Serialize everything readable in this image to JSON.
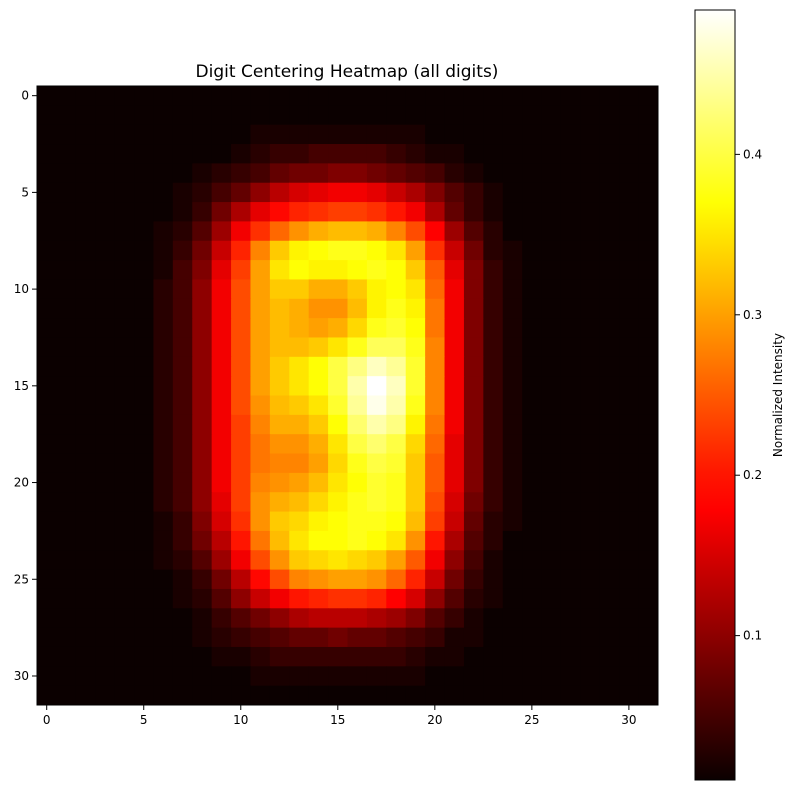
{
  "chart_data": {
    "type": "heatmap",
    "title": "Digit Centering Heatmap (all digits)",
    "xlabel": "",
    "ylabel": "",
    "colormap": "hot",
    "grid": false,
    "rows": 32,
    "cols": 32,
    "xlim": [
      -0.5,
      31.5
    ],
    "ylim": [
      31.5,
      -0.5
    ],
    "x_ticks": [
      0,
      5,
      10,
      15,
      20,
      25,
      30
    ],
    "y_ticks": [
      0,
      5,
      10,
      15,
      20,
      25,
      30
    ],
    "x_tick_labels": [
      "0",
      "5",
      "10",
      "15",
      "20",
      "25",
      "30"
    ],
    "y_tick_labels": [
      "0",
      "5",
      "10",
      "15",
      "20",
      "25",
      "30"
    ],
    "colorbar": {
      "label": "Normalized Intensity",
      "range": [
        0.01,
        0.49
      ],
      "ticks": [
        0.1,
        0.2,
        0.3,
        0.4
      ],
      "tick_labels": [
        "0.1",
        "0.2",
        "0.3",
        "0.4"
      ]
    },
    "values": [
      [
        0.01,
        0.01,
        0.01,
        0.01,
        0.01,
        0.01,
        0.01,
        0.01,
        0.01,
        0.01,
        0.01,
        0.01,
        0.01,
        0.01,
        0.01,
        0.01,
        0.01,
        0.01,
        0.01,
        0.01,
        0.01,
        0.01,
        0.01,
        0.01,
        0.01,
        0.01,
        0.01,
        0.01,
        0.01,
        0.01,
        0.01,
        0.01
      ],
      [
        0.01,
        0.01,
        0.01,
        0.01,
        0.01,
        0.01,
        0.01,
        0.01,
        0.01,
        0.01,
        0.01,
        0.01,
        0.01,
        0.01,
        0.01,
        0.01,
        0.01,
        0.01,
        0.01,
        0.01,
        0.01,
        0.01,
        0.01,
        0.01,
        0.01,
        0.01,
        0.01,
        0.01,
        0.01,
        0.01,
        0.01,
        0.01
      ],
      [
        0.01,
        0.01,
        0.01,
        0.01,
        0.01,
        0.01,
        0.01,
        0.01,
        0.01,
        0.01,
        0.01,
        0.02,
        0.02,
        0.02,
        0.02,
        0.02,
        0.02,
        0.02,
        0.02,
        0.02,
        0.01,
        0.01,
        0.01,
        0.01,
        0.01,
        0.01,
        0.01,
        0.01,
        0.01,
        0.01,
        0.01,
        0.01
      ],
      [
        0.01,
        0.01,
        0.01,
        0.01,
        0.01,
        0.01,
        0.01,
        0.01,
        0.01,
        0.01,
        0.02,
        0.03,
        0.04,
        0.04,
        0.05,
        0.05,
        0.05,
        0.05,
        0.04,
        0.03,
        0.02,
        0.02,
        0.01,
        0.01,
        0.01,
        0.01,
        0.01,
        0.01,
        0.01,
        0.01,
        0.01,
        0.01
      ],
      [
        0.01,
        0.01,
        0.01,
        0.01,
        0.01,
        0.01,
        0.01,
        0.01,
        0.02,
        0.03,
        0.04,
        0.05,
        0.07,
        0.08,
        0.08,
        0.09,
        0.09,
        0.08,
        0.07,
        0.06,
        0.05,
        0.03,
        0.02,
        0.01,
        0.01,
        0.01,
        0.01,
        0.01,
        0.01,
        0.01,
        0.01,
        0.01
      ],
      [
        0.01,
        0.01,
        0.01,
        0.01,
        0.01,
        0.01,
        0.01,
        0.02,
        0.03,
        0.05,
        0.07,
        0.1,
        0.13,
        0.15,
        0.16,
        0.17,
        0.17,
        0.16,
        0.14,
        0.12,
        0.09,
        0.06,
        0.04,
        0.02,
        0.01,
        0.01,
        0.01,
        0.01,
        0.01,
        0.01,
        0.01,
        0.01
      ],
      [
        0.01,
        0.01,
        0.01,
        0.01,
        0.01,
        0.01,
        0.01,
        0.02,
        0.04,
        0.08,
        0.12,
        0.16,
        0.19,
        0.21,
        0.22,
        0.23,
        0.23,
        0.22,
        0.2,
        0.17,
        0.12,
        0.07,
        0.04,
        0.02,
        0.01,
        0.01,
        0.01,
        0.01,
        0.01,
        0.01,
        0.01,
        0.01
      ],
      [
        0.01,
        0.01,
        0.01,
        0.01,
        0.01,
        0.01,
        0.02,
        0.03,
        0.06,
        0.11,
        0.17,
        0.22,
        0.26,
        0.29,
        0.31,
        0.32,
        0.32,
        0.31,
        0.28,
        0.24,
        0.18,
        0.11,
        0.06,
        0.03,
        0.01,
        0.01,
        0.01,
        0.01,
        0.01,
        0.01,
        0.01,
        0.01
      ],
      [
        0.01,
        0.01,
        0.01,
        0.01,
        0.01,
        0.01,
        0.02,
        0.04,
        0.08,
        0.14,
        0.21,
        0.28,
        0.33,
        0.36,
        0.37,
        0.38,
        0.38,
        0.37,
        0.35,
        0.3,
        0.22,
        0.14,
        0.08,
        0.03,
        0.02,
        0.01,
        0.01,
        0.01,
        0.01,
        0.01,
        0.01,
        0.01
      ],
      [
        0.01,
        0.01,
        0.01,
        0.01,
        0.01,
        0.01,
        0.02,
        0.05,
        0.09,
        0.16,
        0.23,
        0.3,
        0.35,
        0.37,
        0.36,
        0.36,
        0.37,
        0.38,
        0.37,
        0.33,
        0.25,
        0.16,
        0.09,
        0.04,
        0.02,
        0.01,
        0.01,
        0.01,
        0.01,
        0.01,
        0.01,
        0.01
      ],
      [
        0.01,
        0.01,
        0.01,
        0.01,
        0.01,
        0.01,
        0.03,
        0.05,
        0.1,
        0.17,
        0.24,
        0.3,
        0.33,
        0.33,
        0.31,
        0.31,
        0.33,
        0.36,
        0.37,
        0.35,
        0.26,
        0.17,
        0.09,
        0.04,
        0.02,
        0.01,
        0.01,
        0.01,
        0.01,
        0.01,
        0.01,
        0.01
      ],
      [
        0.01,
        0.01,
        0.01,
        0.01,
        0.01,
        0.01,
        0.03,
        0.05,
        0.1,
        0.17,
        0.24,
        0.3,
        0.32,
        0.31,
        0.29,
        0.29,
        0.32,
        0.36,
        0.38,
        0.36,
        0.27,
        0.17,
        0.09,
        0.04,
        0.02,
        0.01,
        0.01,
        0.01,
        0.01,
        0.01,
        0.01,
        0.01
      ],
      [
        0.01,
        0.01,
        0.01,
        0.01,
        0.01,
        0.01,
        0.03,
        0.05,
        0.1,
        0.17,
        0.24,
        0.3,
        0.32,
        0.31,
        0.3,
        0.31,
        0.34,
        0.38,
        0.39,
        0.37,
        0.27,
        0.17,
        0.09,
        0.04,
        0.02,
        0.01,
        0.01,
        0.01,
        0.01,
        0.01,
        0.01,
        0.01
      ],
      [
        0.01,
        0.01,
        0.01,
        0.01,
        0.01,
        0.01,
        0.03,
        0.05,
        0.1,
        0.17,
        0.24,
        0.3,
        0.32,
        0.32,
        0.33,
        0.35,
        0.38,
        0.41,
        0.41,
        0.38,
        0.28,
        0.17,
        0.09,
        0.04,
        0.02,
        0.01,
        0.01,
        0.01,
        0.01,
        0.01,
        0.01,
        0.01
      ],
      [
        0.01,
        0.01,
        0.01,
        0.01,
        0.01,
        0.01,
        0.03,
        0.05,
        0.1,
        0.17,
        0.24,
        0.3,
        0.33,
        0.35,
        0.37,
        0.4,
        0.43,
        0.46,
        0.44,
        0.39,
        0.28,
        0.17,
        0.09,
        0.04,
        0.02,
        0.01,
        0.01,
        0.01,
        0.01,
        0.01,
        0.01,
        0.01
      ],
      [
        0.01,
        0.01,
        0.01,
        0.01,
        0.01,
        0.01,
        0.03,
        0.05,
        0.1,
        0.17,
        0.24,
        0.3,
        0.33,
        0.35,
        0.37,
        0.4,
        0.45,
        0.49,
        0.46,
        0.39,
        0.28,
        0.17,
        0.09,
        0.04,
        0.02,
        0.01,
        0.01,
        0.01,
        0.01,
        0.01,
        0.01,
        0.01
      ],
      [
        0.01,
        0.01,
        0.01,
        0.01,
        0.01,
        0.01,
        0.03,
        0.05,
        0.1,
        0.17,
        0.24,
        0.29,
        0.32,
        0.33,
        0.35,
        0.39,
        0.44,
        0.48,
        0.45,
        0.38,
        0.28,
        0.17,
        0.09,
        0.04,
        0.02,
        0.01,
        0.01,
        0.01,
        0.01,
        0.01,
        0.01,
        0.01
      ],
      [
        0.01,
        0.01,
        0.01,
        0.01,
        0.01,
        0.01,
        0.03,
        0.05,
        0.1,
        0.17,
        0.23,
        0.28,
        0.31,
        0.31,
        0.33,
        0.37,
        0.42,
        0.45,
        0.43,
        0.36,
        0.27,
        0.17,
        0.09,
        0.04,
        0.02,
        0.01,
        0.01,
        0.01,
        0.01,
        0.01,
        0.01,
        0.01
      ],
      [
        0.01,
        0.01,
        0.01,
        0.01,
        0.01,
        0.01,
        0.03,
        0.05,
        0.1,
        0.17,
        0.23,
        0.27,
        0.29,
        0.29,
        0.31,
        0.35,
        0.4,
        0.42,
        0.4,
        0.34,
        0.26,
        0.16,
        0.09,
        0.04,
        0.02,
        0.01,
        0.01,
        0.01,
        0.01,
        0.01,
        0.01,
        0.01
      ],
      [
        0.01,
        0.01,
        0.01,
        0.01,
        0.01,
        0.01,
        0.03,
        0.05,
        0.1,
        0.17,
        0.23,
        0.27,
        0.28,
        0.28,
        0.3,
        0.34,
        0.38,
        0.4,
        0.39,
        0.33,
        0.25,
        0.16,
        0.09,
        0.04,
        0.02,
        0.01,
        0.01,
        0.01,
        0.01,
        0.01,
        0.01,
        0.01
      ],
      [
        0.01,
        0.01,
        0.01,
        0.01,
        0.01,
        0.01,
        0.03,
        0.05,
        0.1,
        0.17,
        0.23,
        0.28,
        0.29,
        0.3,
        0.32,
        0.35,
        0.37,
        0.39,
        0.38,
        0.33,
        0.25,
        0.16,
        0.09,
        0.04,
        0.02,
        0.01,
        0.01,
        0.01,
        0.01,
        0.01,
        0.01,
        0.01
      ],
      [
        0.01,
        0.01,
        0.01,
        0.01,
        0.01,
        0.01,
        0.03,
        0.05,
        0.1,
        0.16,
        0.23,
        0.29,
        0.31,
        0.32,
        0.34,
        0.36,
        0.38,
        0.39,
        0.38,
        0.33,
        0.24,
        0.15,
        0.08,
        0.04,
        0.02,
        0.01,
        0.01,
        0.01,
        0.01,
        0.01,
        0.01,
        0.01
      ],
      [
        0.01,
        0.01,
        0.01,
        0.01,
        0.01,
        0.01,
        0.02,
        0.04,
        0.09,
        0.15,
        0.22,
        0.29,
        0.33,
        0.34,
        0.36,
        0.37,
        0.38,
        0.38,
        0.37,
        0.32,
        0.23,
        0.14,
        0.07,
        0.03,
        0.02,
        0.01,
        0.01,
        0.01,
        0.01,
        0.01,
        0.01,
        0.01
      ],
      [
        0.01,
        0.01,
        0.01,
        0.01,
        0.01,
        0.01,
        0.02,
        0.04,
        0.08,
        0.13,
        0.2,
        0.27,
        0.32,
        0.35,
        0.37,
        0.37,
        0.38,
        0.37,
        0.35,
        0.29,
        0.2,
        0.12,
        0.06,
        0.03,
        0.01,
        0.01,
        0.01,
        0.01,
        0.01,
        0.01,
        0.01,
        0.01
      ],
      [
        0.01,
        0.01,
        0.01,
        0.01,
        0.01,
        0.01,
        0.02,
        0.03,
        0.06,
        0.11,
        0.17,
        0.24,
        0.29,
        0.33,
        0.34,
        0.35,
        0.34,
        0.33,
        0.3,
        0.25,
        0.17,
        0.1,
        0.05,
        0.02,
        0.01,
        0.01,
        0.01,
        0.01,
        0.01,
        0.01,
        0.01,
        0.01
      ],
      [
        0.01,
        0.01,
        0.01,
        0.01,
        0.01,
        0.01,
        0.01,
        0.02,
        0.04,
        0.08,
        0.13,
        0.19,
        0.24,
        0.28,
        0.29,
        0.3,
        0.3,
        0.29,
        0.26,
        0.21,
        0.14,
        0.08,
        0.04,
        0.02,
        0.01,
        0.01,
        0.01,
        0.01,
        0.01,
        0.01,
        0.01,
        0.01
      ],
      [
        0.01,
        0.01,
        0.01,
        0.01,
        0.01,
        0.01,
        0.01,
        0.02,
        0.03,
        0.06,
        0.1,
        0.14,
        0.17,
        0.2,
        0.21,
        0.22,
        0.22,
        0.21,
        0.18,
        0.15,
        0.1,
        0.06,
        0.03,
        0.02,
        0.01,
        0.01,
        0.01,
        0.01,
        0.01,
        0.01,
        0.01,
        0.01
      ],
      [
        0.01,
        0.01,
        0.01,
        0.01,
        0.01,
        0.01,
        0.01,
        0.01,
        0.02,
        0.04,
        0.06,
        0.08,
        0.1,
        0.12,
        0.13,
        0.13,
        0.13,
        0.12,
        0.11,
        0.09,
        0.06,
        0.04,
        0.02,
        0.01,
        0.01,
        0.01,
        0.01,
        0.01,
        0.01,
        0.01,
        0.01,
        0.01
      ],
      [
        0.01,
        0.01,
        0.01,
        0.01,
        0.01,
        0.01,
        0.01,
        0.01,
        0.02,
        0.03,
        0.04,
        0.05,
        0.06,
        0.07,
        0.07,
        0.08,
        0.07,
        0.07,
        0.06,
        0.05,
        0.04,
        0.02,
        0.02,
        0.01,
        0.01,
        0.01,
        0.01,
        0.01,
        0.01,
        0.01,
        0.01,
        0.01
      ],
      [
        0.01,
        0.01,
        0.01,
        0.01,
        0.01,
        0.01,
        0.01,
        0.01,
        0.01,
        0.02,
        0.02,
        0.03,
        0.04,
        0.04,
        0.04,
        0.04,
        0.04,
        0.04,
        0.04,
        0.03,
        0.02,
        0.02,
        0.01,
        0.01,
        0.01,
        0.01,
        0.01,
        0.01,
        0.01,
        0.01,
        0.01,
        0.01
      ],
      [
        0.01,
        0.01,
        0.01,
        0.01,
        0.01,
        0.01,
        0.01,
        0.01,
        0.01,
        0.01,
        0.01,
        0.02,
        0.02,
        0.02,
        0.02,
        0.02,
        0.02,
        0.02,
        0.02,
        0.02,
        0.01,
        0.01,
        0.01,
        0.01,
        0.01,
        0.01,
        0.01,
        0.01,
        0.01,
        0.01,
        0.01,
        0.01
      ],
      [
        0.01,
        0.01,
        0.01,
        0.01,
        0.01,
        0.01,
        0.01,
        0.01,
        0.01,
        0.01,
        0.01,
        0.01,
        0.01,
        0.01,
        0.01,
        0.01,
        0.01,
        0.01,
        0.01,
        0.01,
        0.01,
        0.01,
        0.01,
        0.01,
        0.01,
        0.01,
        0.01,
        0.01,
        0.01,
        0.01,
        0.01,
        0.01
      ]
    ]
  }
}
